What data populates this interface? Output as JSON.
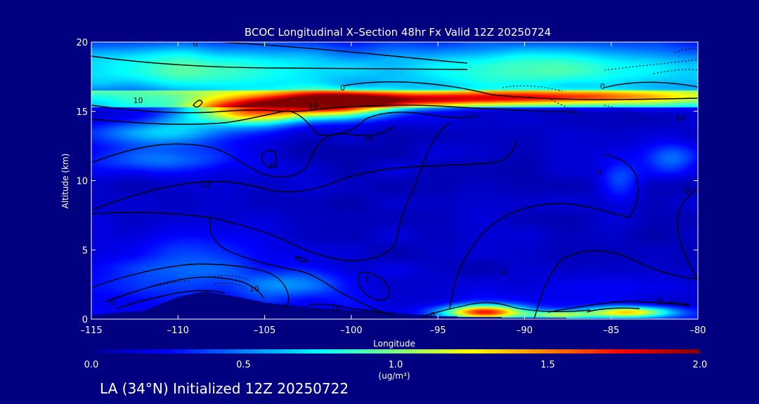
{
  "chart_data": {
    "type": "heatmap",
    "title": "BCOC Longitudinal X–Section 48hr  Fx Valid 12Z 20250724",
    "xlabel": "Longitude",
    "ylabel": "Altitude (km)",
    "xlim": [
      -115,
      -80
    ],
    "ylim": [
      0,
      20
    ],
    "xticks": [
      -115,
      -110,
      -105,
      -100,
      -95,
      -90,
      -85,
      -80
    ],
    "xtick_labels": [
      "–115",
      "–110",
      "–105",
      "–100",
      "–95",
      "–90",
      "–85",
      "–80"
    ],
    "yticks": [
      0,
      5,
      10,
      15,
      20
    ],
    "ytick_labels": [
      "0",
      "5",
      "10",
      "15",
      "20"
    ],
    "colorbar": {
      "min": 0.0,
      "max": 2.0,
      "ticks": [
        "0.0",
        "0.5",
        "1.0",
        "1.5",
        "2.0"
      ],
      "tick_values": [
        0,
        0.5,
        1.0,
        1.5,
        2.0
      ],
      "units": "(ug/m³)"
    },
    "contour_labels": [
      {
        "text": "0",
        "lon": -109.0,
        "alt": 19.9
      },
      {
        "text": "0",
        "lon": -100.5,
        "alt": 16.7
      },
      {
        "text": "0",
        "lon": -85.5,
        "alt": 16.8
      },
      {
        "text": "10",
        "lon": -112.3,
        "alt": 15.8
      },
      {
        "text": "10",
        "lon": -102.2,
        "alt": 15.4
      },
      {
        "text": "10",
        "lon": -99.0,
        "alt": 13.1
      },
      {
        "text": "10",
        "lon": -81.0,
        "alt": 14.5
      },
      {
        "text": "10",
        "lon": -108.4,
        "alt": 9.7
      },
      {
        "text": "10",
        "lon": -104.5,
        "alt": 11.1
      },
      {
        "text": "0",
        "lon": -85.7,
        "alt": 10.6
      },
      {
        "text": "0",
        "lon": -80.6,
        "alt": 9.3
      },
      {
        "text": "10",
        "lon": -105.6,
        "alt": 2.2
      },
      {
        "text": "0",
        "lon": -113.8,
        "alt": 1.2
      },
      {
        "text": "0",
        "lon": -99.1,
        "alt": 2.9
      },
      {
        "text": "0",
        "lon": -91.2,
        "alt": 3.4
      },
      {
        "text": "10",
        "lon": -100.9,
        "alt": 0.8
      },
      {
        "text": "0",
        "lon": -95.3,
        "alt": 0.3
      },
      {
        "text": "0",
        "lon": -82.2,
        "alt": 1.3
      }
    ],
    "field": {
      "plumes": [
        {
          "lon": -101.0,
          "alt": 15.5,
          "rlon": 3.5,
          "ralt": 0.9,
          "value": 1.6
        },
        {
          "lon": -106.0,
          "alt": 15.0,
          "rlon": 3.5,
          "ralt": 1.0,
          "value": 1.3
        },
        {
          "lon": -96.0,
          "alt": 15.8,
          "rlon": 6.0,
          "ralt": 0.5,
          "value": 0.6
        },
        {
          "lon": -88.0,
          "alt": 16.0,
          "rlon": 9.0,
          "ralt": 0.5,
          "value": 0.8
        },
        {
          "lon": -92.3,
          "alt": 0.5,
          "rlon": 2.3,
          "ralt": 0.5,
          "value": 1.5
        },
        {
          "lon": -84.0,
          "alt": 0.5,
          "rlon": 2.5,
          "ralt": 0.4,
          "value": 1.1
        },
        {
          "lon": -88.0,
          "alt": 0.3,
          "rlon": 2.0,
          "ralt": 0.3,
          "value": 0.8
        },
        {
          "lon": -111.0,
          "alt": 13.5,
          "rlon": 4.0,
          "ralt": 1.0,
          "value": 0.5
        },
        {
          "lon": -111.0,
          "alt": 11.5,
          "rlon": 4.0,
          "ralt": 1.0,
          "value": 0.35
        },
        {
          "lon": -84.5,
          "alt": 10.0,
          "rlon": 1.2,
          "ralt": 1.5,
          "value": 0.3
        },
        {
          "lon": -81.5,
          "alt": 11.5,
          "rlon": 1.5,
          "ralt": 1.2,
          "value": 0.3
        },
        {
          "lon": -109.0,
          "alt": 4.0,
          "rlon": 5.0,
          "ralt": 2.5,
          "value": 0.3
        },
        {
          "lon": -103.0,
          "alt": 2.5,
          "rlon": 3.0,
          "ralt": 1.0,
          "value": 0.3
        }
      ],
      "stratosphere_base": 0.55,
      "stratosphere_peak_alt": 18.0
    },
    "terrain": [
      [
        -115,
        0.3
      ],
      [
        -112,
        0.6
      ],
      [
        -110,
        1.6
      ],
      [
        -108.5,
        2.0
      ],
      [
        -107,
        1.7
      ],
      [
        -105,
        1.2
      ],
      [
        -102,
        0.8
      ],
      [
        -98,
        0.5
      ],
      [
        -95,
        0.2
      ],
      [
        -90,
        0.1
      ],
      [
        -80,
        0
      ]
    ]
  },
  "footer": {
    "label": "LA (34°N) Initialized 12Z 20250722"
  }
}
